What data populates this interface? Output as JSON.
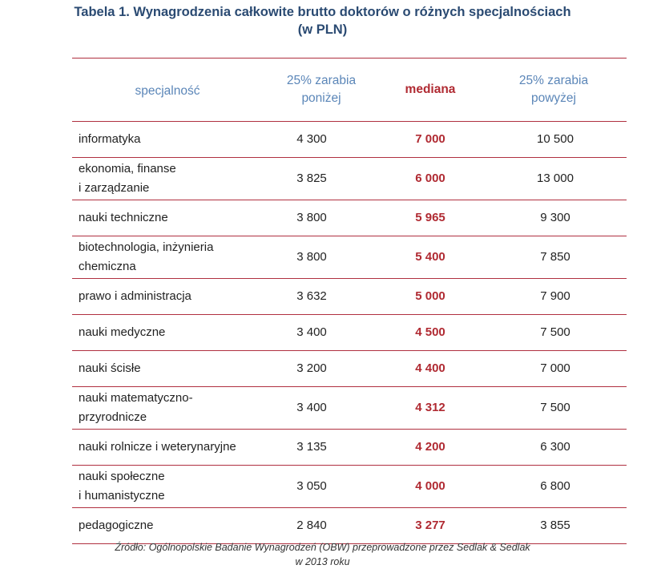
{
  "title": {
    "line1": "Tabela 1. Wynagrodzenia całkowite brutto doktorów o różnych specjalnościach",
    "line2": "(w PLN)"
  },
  "colors": {
    "header_blue": "#5b86b8",
    "median_red": "#b02a32",
    "rule_red": "#b03040",
    "title_navy": "#2a4a72"
  },
  "table": {
    "headers": {
      "spec": "specjalność",
      "low_line1": "25% zarabia",
      "low_line2": "poniżej",
      "median": "mediana",
      "high_line1": "25% zarabia",
      "high_line2": "powyżej"
    },
    "rows": [
      {
        "name1": "informatyka",
        "name2": "",
        "low": "4 300",
        "median": "7 000",
        "high": "10 500"
      },
      {
        "name1": "ekonomia,  finanse",
        "name2": "i zarządzanie",
        "low": "3 825",
        "median": "6 000",
        "high": "13 000"
      },
      {
        "name1": "nauki techniczne",
        "name2": "",
        "low": "3 800",
        "median": "5 965",
        "high": "9 300"
      },
      {
        "name1": "biotechnologia,  inżynieria",
        "name2": "chemiczna",
        "low": "3 800",
        "median": "5 400",
        "high": "7 850"
      },
      {
        "name1": "prawo  i administracja",
        "name2": "",
        "low": "3 632",
        "median": "5 000",
        "high": "7 900"
      },
      {
        "name1": "nauki medyczne",
        "name2": "",
        "low": "3 400",
        "median": "4 500",
        "high": "7 500"
      },
      {
        "name1": "nauki ścisłe",
        "name2": "",
        "low": "3 200",
        "median": "4 400",
        "high": "7 000"
      },
      {
        "name1": "nauki matematyczno-",
        "name2": "przyrodnicze",
        "low": "3 400",
        "median": "4 312",
        "high": "7 500"
      },
      {
        "name1": "nauki rolnicze  i weterynaryjne",
        "name2": "",
        "low": "3 135",
        "median": "4 200",
        "high": "6 300"
      },
      {
        "name1": "nauki społeczne",
        "name2": "i humanistyczne",
        "low": "3 050",
        "median": "4 000",
        "high": "6 800"
      },
      {
        "name1": "pedagogiczne",
        "name2": "",
        "low": "2 840",
        "median": "3 277",
        "high": "3 855"
      }
    ]
  },
  "source": {
    "line1": "Źródło: Ogólnopolskie Badanie Wynagrodzeń (OBW) przeprowadzone przez Sedlak & Sedlak",
    "line2": "w 2013 roku"
  }
}
